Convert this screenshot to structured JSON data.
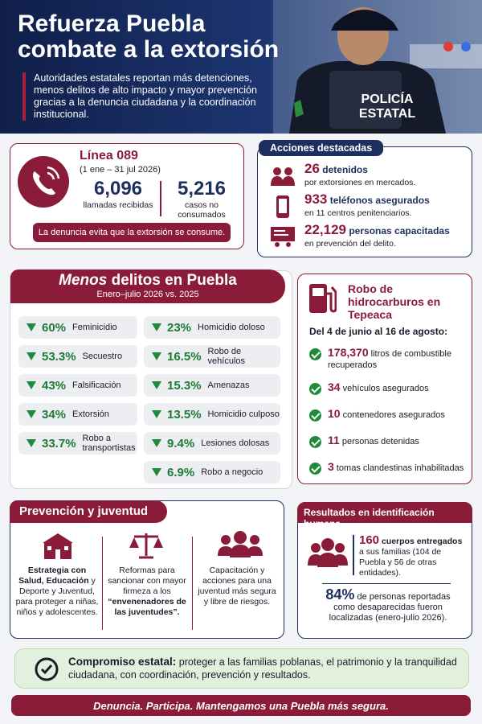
{
  "header": {
    "title_line1": "Refuerza Puebla",
    "title_line2": "combate a la extorsión",
    "subtitle": "Autoridades estatales reportan más detenciones, menos delitos de alto impacto y mayor prevención gracias a la denuncia ciudadana y la coordinación institucional.",
    "vest_line1": "POLICÍA",
    "vest_line2": "ESTATAL"
  },
  "hotline": {
    "title": "Línea 089",
    "period": "(1 ene – 31 jul 2026)",
    "stats": [
      {
        "value": "6,096",
        "label": "llamadas recibidas"
      },
      {
        "value": "5,216",
        "label": "casos no consumados"
      }
    ],
    "banner": "La denuncia evita que la extorsión se consume."
  },
  "actions": {
    "title": "Acciones destacadas",
    "items": [
      {
        "value": "26",
        "label": "detenidos",
        "detail": "por extorsiones en mercados."
      },
      {
        "value": "933",
        "label": "teléfonos asegurados",
        "detail": "en 11 centros penitenciarios."
      },
      {
        "value": "22,129",
        "label": "personas capacitadas",
        "detail": "en prevención del delito."
      }
    ]
  },
  "crimes": {
    "title_emphasis": "Menos",
    "title_rest": "delitos en Puebla",
    "subtitle": "Enero–julio 2026 vs. 2025",
    "left": [
      {
        "value": "60%",
        "label": "Feminicidio"
      },
      {
        "value": "53.3%",
        "label": "Secuestro"
      },
      {
        "value": "43%",
        "label": "Falsificación"
      },
      {
        "value": "34%",
        "label": "Extorsión"
      },
      {
        "value": "33.7%",
        "label": "Robo a transportistas"
      }
    ],
    "right": [
      {
        "value": "23%",
        "label": "Homicidio doloso"
      },
      {
        "value": "16.5%",
        "label": "Robo de vehículos"
      },
      {
        "value": "15.3%",
        "label": "Amenazas"
      },
      {
        "value": "13.5%",
        "label": "Homicidio culposo"
      },
      {
        "value": "9.4%",
        "label": "Lesiones dolosas"
      },
      {
        "value": "6.9%",
        "label": "Robo a negocio"
      }
    ]
  },
  "fuel": {
    "title": "Robo de hidrocarburos en Tepeaca",
    "dates": "Del 4 de junio al 16 de agosto:",
    "items": [
      {
        "value": "178,370",
        "label": "litros de combustible recuperados"
      },
      {
        "value": "34",
        "label": "vehículos asegurados"
      },
      {
        "value": "10",
        "label": "contenedores asegurados"
      },
      {
        "value": "11",
        "label": "personas detenidas"
      },
      {
        "value": "3",
        "label": "tomas clandestinas inhabilitadas"
      }
    ]
  },
  "prevention": {
    "title": "Prevención y juventud",
    "columns": [
      {
        "bold": "Estrategia con Salud, Educación",
        "text": "y Deporte y Juventud, para proteger a niñas, niños y adolescentes."
      },
      {
        "text": "Reformas para sancionar con mayor firmeza a los",
        "bold": "“envenenadores de las juventudes”."
      },
      {
        "text": "Capacitación y acciones para una juventud más segura y libre de riesgos."
      }
    ]
  },
  "identification": {
    "title": "Resultados en identificación humana",
    "stat1": {
      "value": "160",
      "bold": "cuerpos entregados",
      "text": "a sus familias (104 de Puebla y 56 de otras entidades)."
    },
    "stat2": {
      "value": "84%",
      "text": "de personas reportadas como desaparecidas fueron localizadas (enero-julio 2026)."
    }
  },
  "commitment": {
    "bold": "Compromiso estatal:",
    "text": "proteger a las familias poblanas, el patrimonio y la tranquilidad ciudadana, con coordinación, prevención y resultados."
  },
  "footer": "Denuncia. Participa. Mantengamos una Puebla más segura."
}
